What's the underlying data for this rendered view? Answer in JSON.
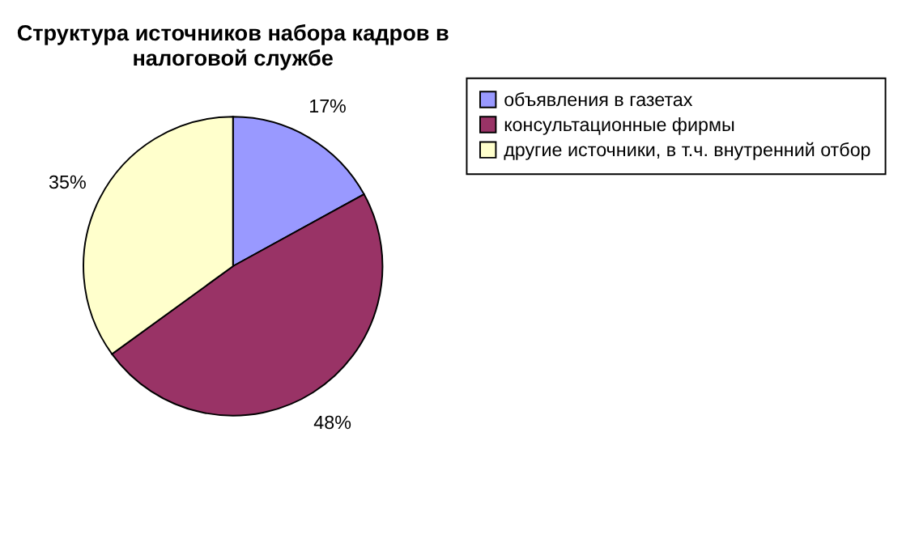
{
  "chart_data": {
    "type": "pie",
    "title": [
      "Структура источников набора кадров в",
      "налоговой службе"
    ],
    "categories": [
      "объявления в газетах",
      "консультационные фирмы",
      "другие источники, в т.ч. внутренний отбор"
    ],
    "values": [
      17,
      48,
      35
    ],
    "colors": [
      "#9999ff",
      "#993366",
      "#ffffcc"
    ],
    "value_labels": [
      "17%",
      "48%",
      "35%"
    ],
    "legend": "right"
  }
}
